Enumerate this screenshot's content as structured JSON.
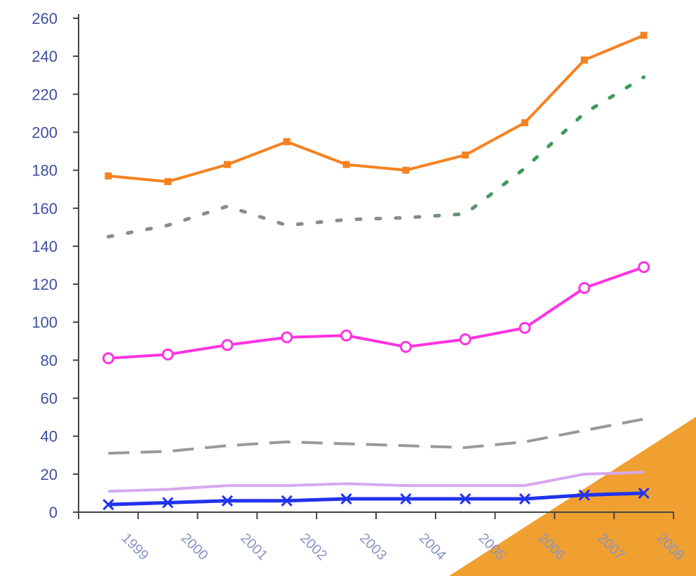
{
  "chart_data": {
    "type": "line",
    "categories": [
      "1999",
      "2000",
      "2001",
      "2002",
      "2003",
      "2004",
      "2005",
      "2006",
      "2007",
      "2008"
    ],
    "ylim": [
      0,
      260
    ],
    "yticks": [
      0,
      20,
      40,
      60,
      80,
      100,
      120,
      140,
      160,
      180,
      200,
      220,
      240,
      260
    ],
    "grid": false,
    "legend": "none",
    "series": [
      {
        "values": [
          177,
          174,
          183,
          195,
          183,
          180,
          188,
          205,
          238,
          251
        ],
        "color": "#f58220",
        "style": "solid",
        "marker": "square"
      },
      {
        "values": [
          145,
          151,
          161,
          151,
          154,
          155,
          157,
          181,
          210,
          229
        ],
        "color_start": "#8a8a8a",
        "color_end": "#3a9a5a",
        "style": "dotted",
        "marker": "none"
      },
      {
        "values": [
          81,
          83,
          88,
          92,
          93,
          87,
          91,
          97,
          118,
          129
        ],
        "color": "#ff33e0",
        "style": "solid",
        "marker": "circle"
      },
      {
        "values": [
          31,
          32,
          35,
          37,
          36,
          35,
          34,
          37,
          43,
          49
        ],
        "color": "#999999",
        "style": "dashed",
        "marker": "none"
      },
      {
        "values": [
          11,
          12,
          14,
          14,
          15,
          14,
          14,
          14,
          20,
          21
        ],
        "color": "#d7a8f0",
        "style": "solid",
        "marker": "none"
      },
      {
        "values": [
          4,
          5,
          6,
          6,
          7,
          7,
          7,
          7,
          9,
          10
        ],
        "color": "#2233ee",
        "style": "solid",
        "marker": "x"
      }
    ],
    "title": "",
    "xlabel": "",
    "ylabel": "",
    "corner_accent_color": "#f0a030"
  }
}
